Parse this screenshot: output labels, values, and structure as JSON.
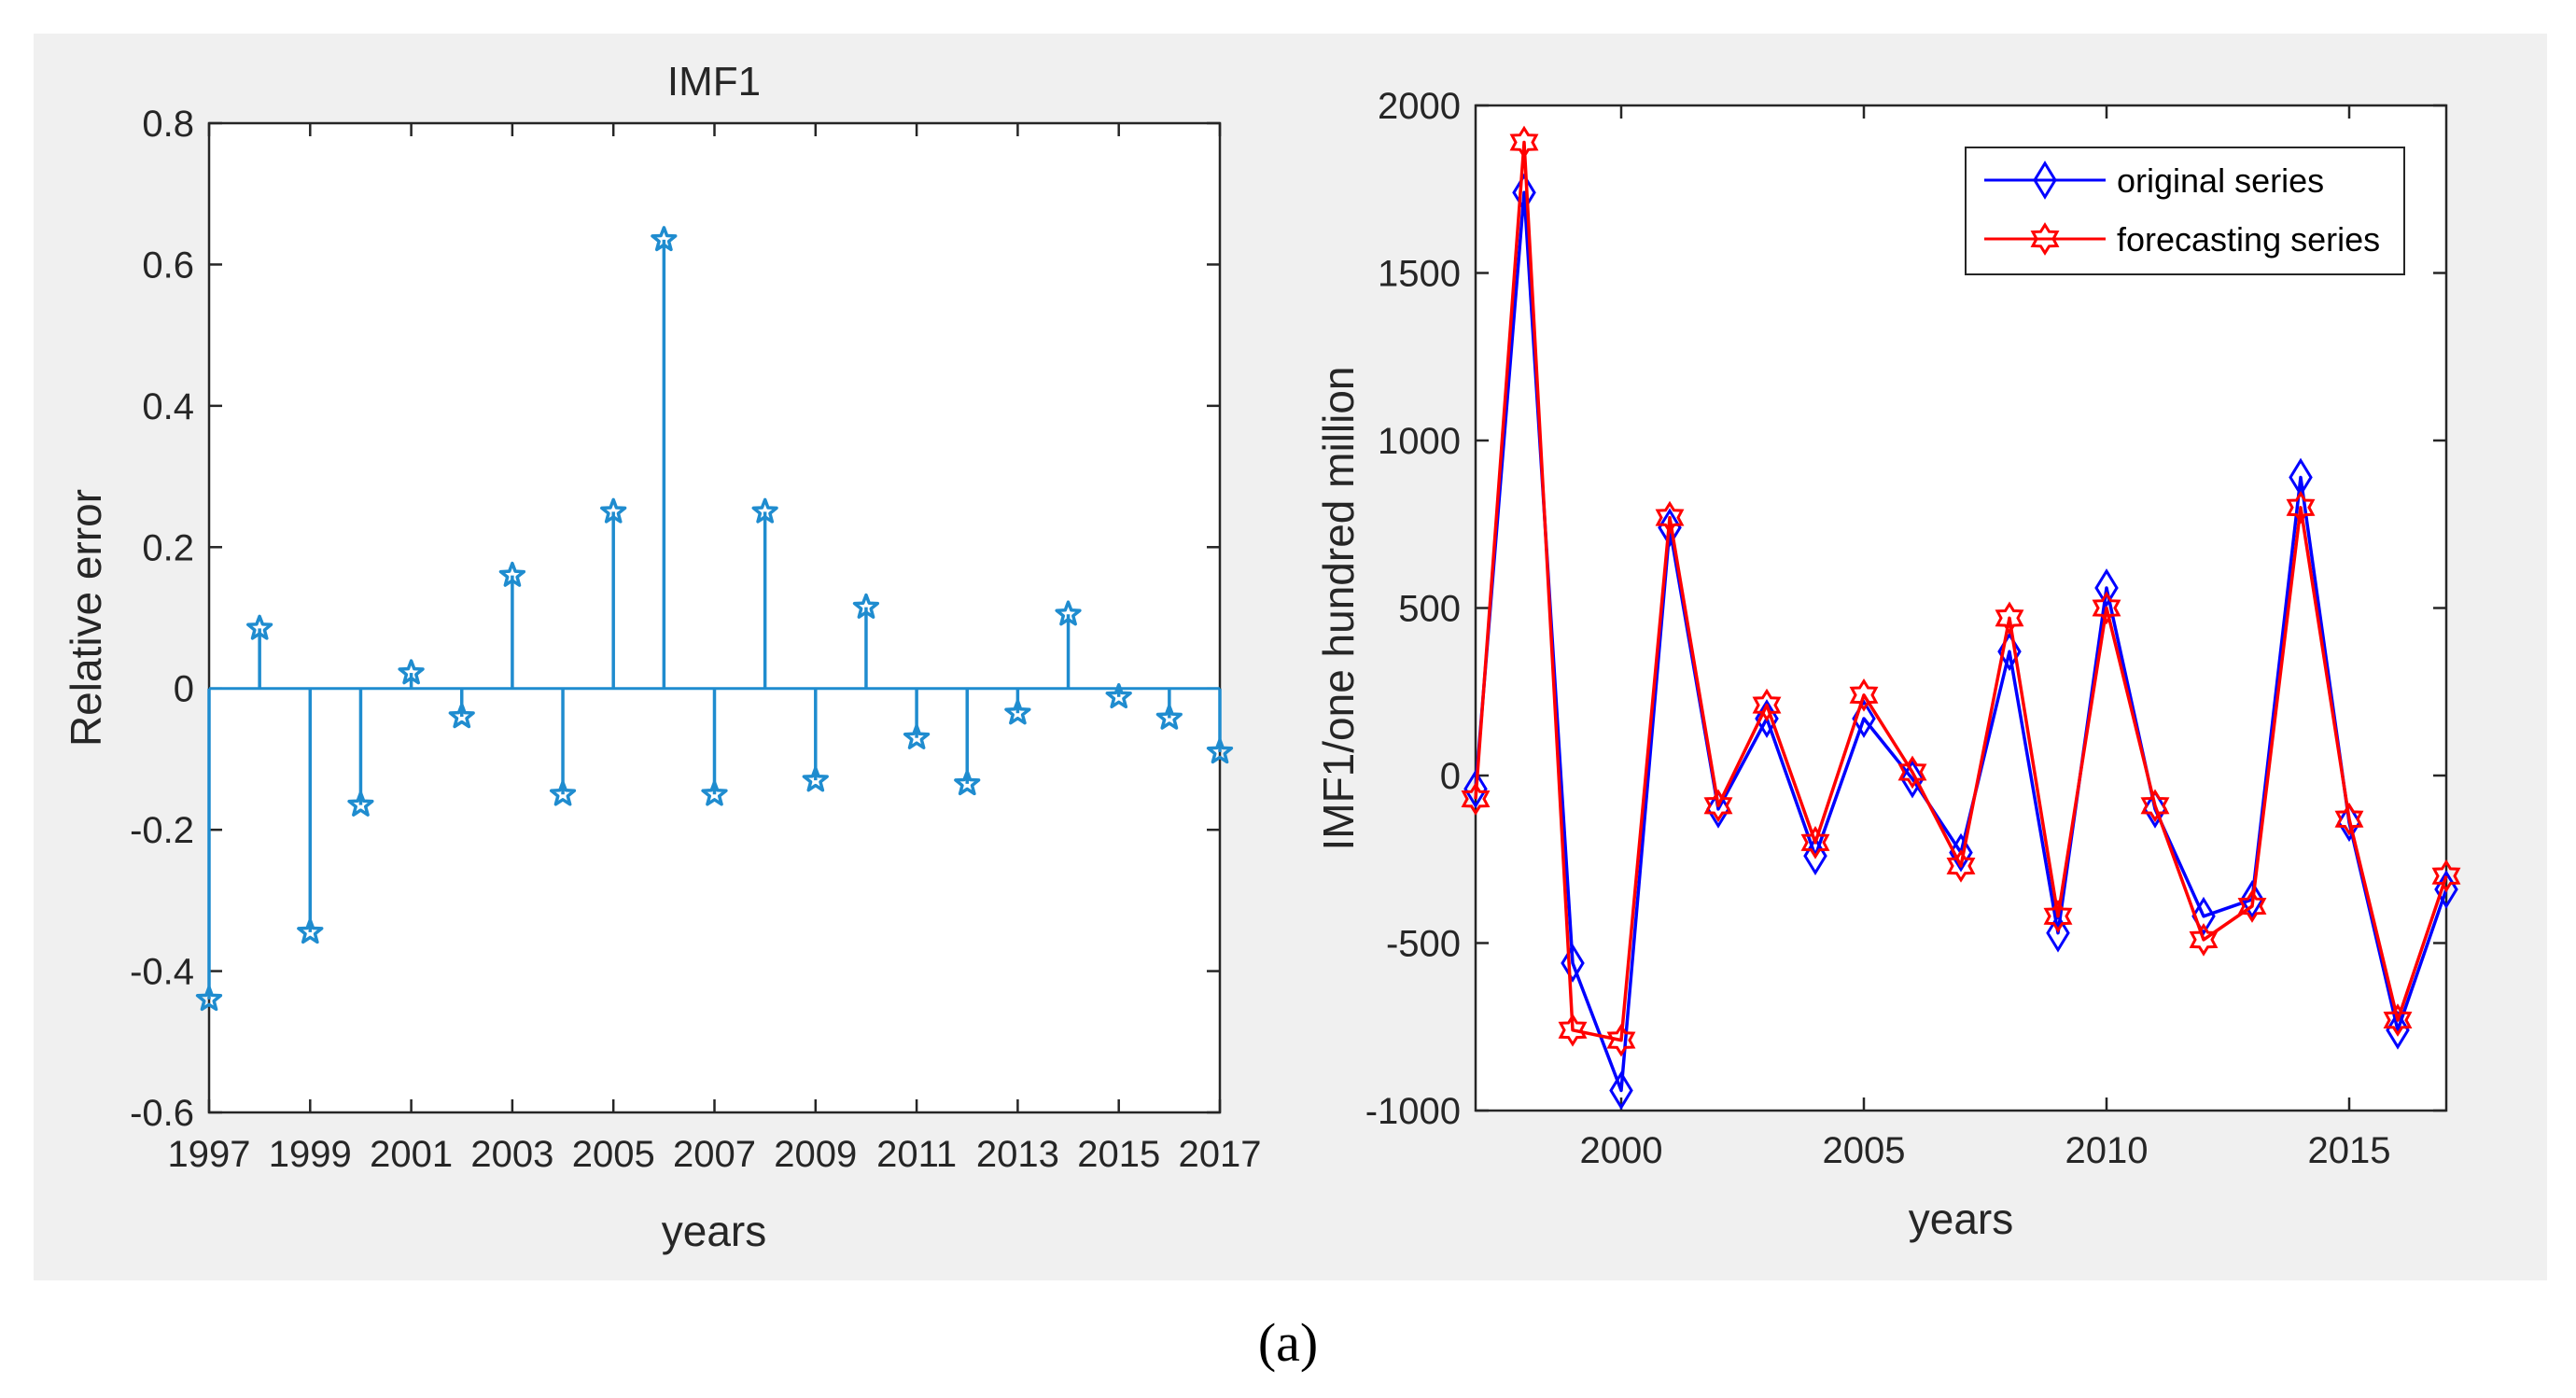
{
  "chart_data": [
    {
      "type": "stem",
      "title": "IMF1",
      "xlabel": "years",
      "ylabel": "Relative error",
      "xlim": [
        1997,
        2017
      ],
      "ylim": [
        -0.6,
        0.8
      ],
      "xticks": [
        "1997",
        "1999",
        "2001",
        "2003",
        "2005",
        "2007",
        "2009",
        "2011",
        "2013",
        "2015",
        "2017"
      ],
      "yticks": [
        "0.8",
        "0.6",
        "0.4",
        "0.2",
        "0",
        "-0.2",
        "-0.4",
        "-0.6"
      ],
      "x": [
        1997,
        1998,
        1999,
        2000,
        2001,
        2002,
        2003,
        2004,
        2005,
        2006,
        2007,
        2008,
        2009,
        2010,
        2011,
        2012,
        2013,
        2014,
        2015,
        2016,
        2017
      ],
      "values": [
        -0.44,
        0.085,
        -0.345,
        -0.165,
        0.022,
        -0.04,
        0.16,
        -0.15,
        0.25,
        0.635,
        -0.15,
        0.25,
        -0.13,
        0.115,
        -0.07,
        -0.135,
        -0.035,
        0.105,
        -0.012,
        -0.042,
        -0.09
      ],
      "marker": "star",
      "color": "#1f8ccf"
    },
    {
      "type": "line",
      "title": "",
      "xlabel": "years",
      "ylabel": "IMF1/one hundred million",
      "xlim": [
        1997,
        2017
      ],
      "ylim": [
        -1000,
        2000
      ],
      "xticks": [
        "2000",
        "2005",
        "2010",
        "2015"
      ],
      "yticks": [
        "2000",
        "1500",
        "1000",
        "500",
        "0",
        "-500",
        "-1000"
      ],
      "legend_position": "top-right",
      "x": [
        1997,
        1998,
        1999,
        2000,
        2001,
        2002,
        2003,
        2004,
        2005,
        2006,
        2007,
        2008,
        2009,
        2010,
        2011,
        2012,
        2013,
        2014,
        2015,
        2016,
        2017
      ],
      "series": [
        {
          "name": "original series",
          "color": "#0000ff",
          "marker": "diamond",
          "values": [
            -40,
            1740,
            -560,
            -940,
            740,
            -100,
            170,
            -240,
            170,
            -10,
            -230,
            370,
            -470,
            560,
            -100,
            -420,
            -370,
            890,
            -140,
            -760,
            -340
          ]
        },
        {
          "name": "forecasting series",
          "color": "#ff0000",
          "marker": "hexagram",
          "values": [
            -70,
            1890,
            -760,
            -790,
            770,
            -90,
            210,
            -200,
            240,
            10,
            -270,
            470,
            -420,
            500,
            -90,
            -490,
            -390,
            800,
            -130,
            -730,
            -300
          ]
        }
      ]
    }
  ],
  "caption": "(a)"
}
